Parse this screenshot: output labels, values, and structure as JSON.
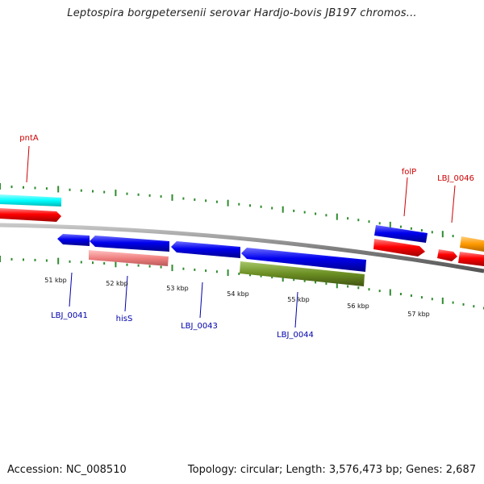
{
  "title": "Leptospira borgpetersenii serovar Hardjo-bovis JB197 chromos...",
  "footer": {
    "accession": "Accession: NC_008510",
    "stats": "Topology: circular; Length: 3,576,473 bp; Genes: 2,687"
  },
  "colors": {
    "backbone": "#808080",
    "tick": "#2e8b2e",
    "label_red": "#cc0000",
    "label_blue": "#0000aa",
    "gene_red": "#ff0000",
    "gene_blue": "#0000ee",
    "gene_cyan": "#00ffff",
    "gene_pink": "#f08080",
    "gene_olive": "#6b8e23",
    "gene_orange": "#ff9900"
  },
  "kbp_labels": [
    "51 kbp",
    "52 kbp",
    "53 kbp",
    "54 kbp",
    "55 kbp",
    "56 kbp",
    "57 kbp"
  ],
  "gene_labels": [
    {
      "id": "pntA",
      "text": "pntA",
      "color": "red"
    },
    {
      "id": "folP",
      "text": "folP",
      "color": "red"
    },
    {
      "id": "lbj0046",
      "text": "LBJ_0046",
      "color": "red"
    },
    {
      "id": "lbj0041",
      "text": "LBJ_0041",
      "color": "blue"
    },
    {
      "id": "hisS",
      "text": "hisS",
      "color": "blue"
    },
    {
      "id": "lbj0043",
      "text": "LBJ_0043",
      "color": "blue"
    },
    {
      "id": "lbj0044",
      "text": "LBJ_0044",
      "color": "blue"
    }
  ]
}
